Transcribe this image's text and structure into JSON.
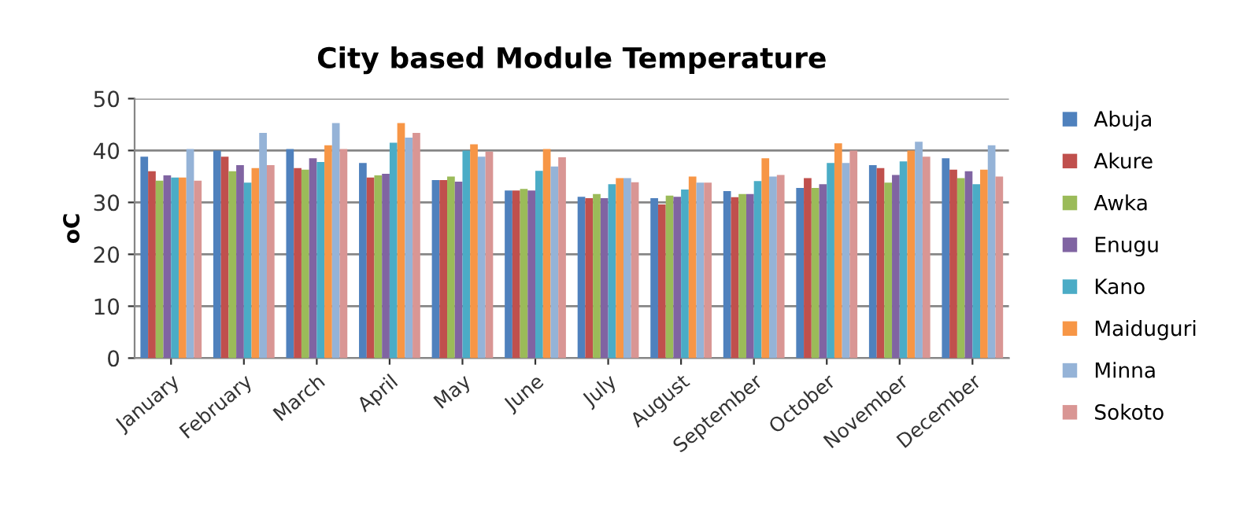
{
  "chart_data": {
    "type": "bar",
    "title": "City based Module Temperature",
    "ylabel": "oC",
    "categories": [
      "January",
      "February",
      "March",
      "April",
      "May",
      "June",
      "July",
      "August",
      "September",
      "October",
      "November",
      "December"
    ],
    "series": [
      {
        "name": "Abuja",
        "color": "#4f81bd",
        "values": [
          38.8,
          40,
          40.3,
          37.6,
          34.3,
          32.3,
          31.1,
          30.8,
          32.2,
          32.8,
          37.2,
          38.5
        ]
      },
      {
        "name": "Akure",
        "color": "#c0504d",
        "values": [
          36,
          38.8,
          36.6,
          34.8,
          34.3,
          32.3,
          30.8,
          29.6,
          31,
          34.7,
          36.6,
          36.3
        ]
      },
      {
        "name": "Awka",
        "color": "#9bbb59",
        "values": [
          34.2,
          36,
          36.3,
          35.2,
          35,
          32.6,
          31.6,
          31.3,
          31.6,
          32.8,
          33.8,
          34.7
        ]
      },
      {
        "name": "Enugu",
        "color": "#8064a2",
        "values": [
          35.2,
          37.2,
          38.5,
          35.5,
          34,
          32.3,
          30.8,
          31.1,
          31.6,
          33.5,
          35.3,
          36
        ]
      },
      {
        "name": "Kano",
        "color": "#4bacc6",
        "values": [
          34.8,
          33.8,
          37.8,
          41.5,
          40,
          36.1,
          33.5,
          32.5,
          34.1,
          37.6,
          37.9,
          33.5
        ]
      },
      {
        "name": "Maiduguri",
        "color": "#f79646",
        "values": [
          34.8,
          36.6,
          41,
          45.3,
          41.2,
          40.3,
          34.7,
          35,
          38.5,
          41.4,
          40,
          36.3
        ]
      },
      {
        "name": "Minna",
        "color": "#95b3d7",
        "values": [
          40.3,
          43.4,
          45.3,
          42.5,
          38.8,
          36.9,
          34.7,
          33.8,
          35,
          37.6,
          41.7,
          41
        ]
      },
      {
        "name": "Sokoto",
        "color": "#d99694",
        "values": [
          34.2,
          37.2,
          40.3,
          43.4,
          39.8,
          38.7,
          33.9,
          33.8,
          35.3,
          40,
          38.8,
          35
        ]
      }
    ],
    "ylim": [
      0,
      50
    ],
    "yticks": [
      0,
      10,
      20,
      30,
      40,
      50
    ],
    "grid": "y",
    "legend": "right"
  }
}
